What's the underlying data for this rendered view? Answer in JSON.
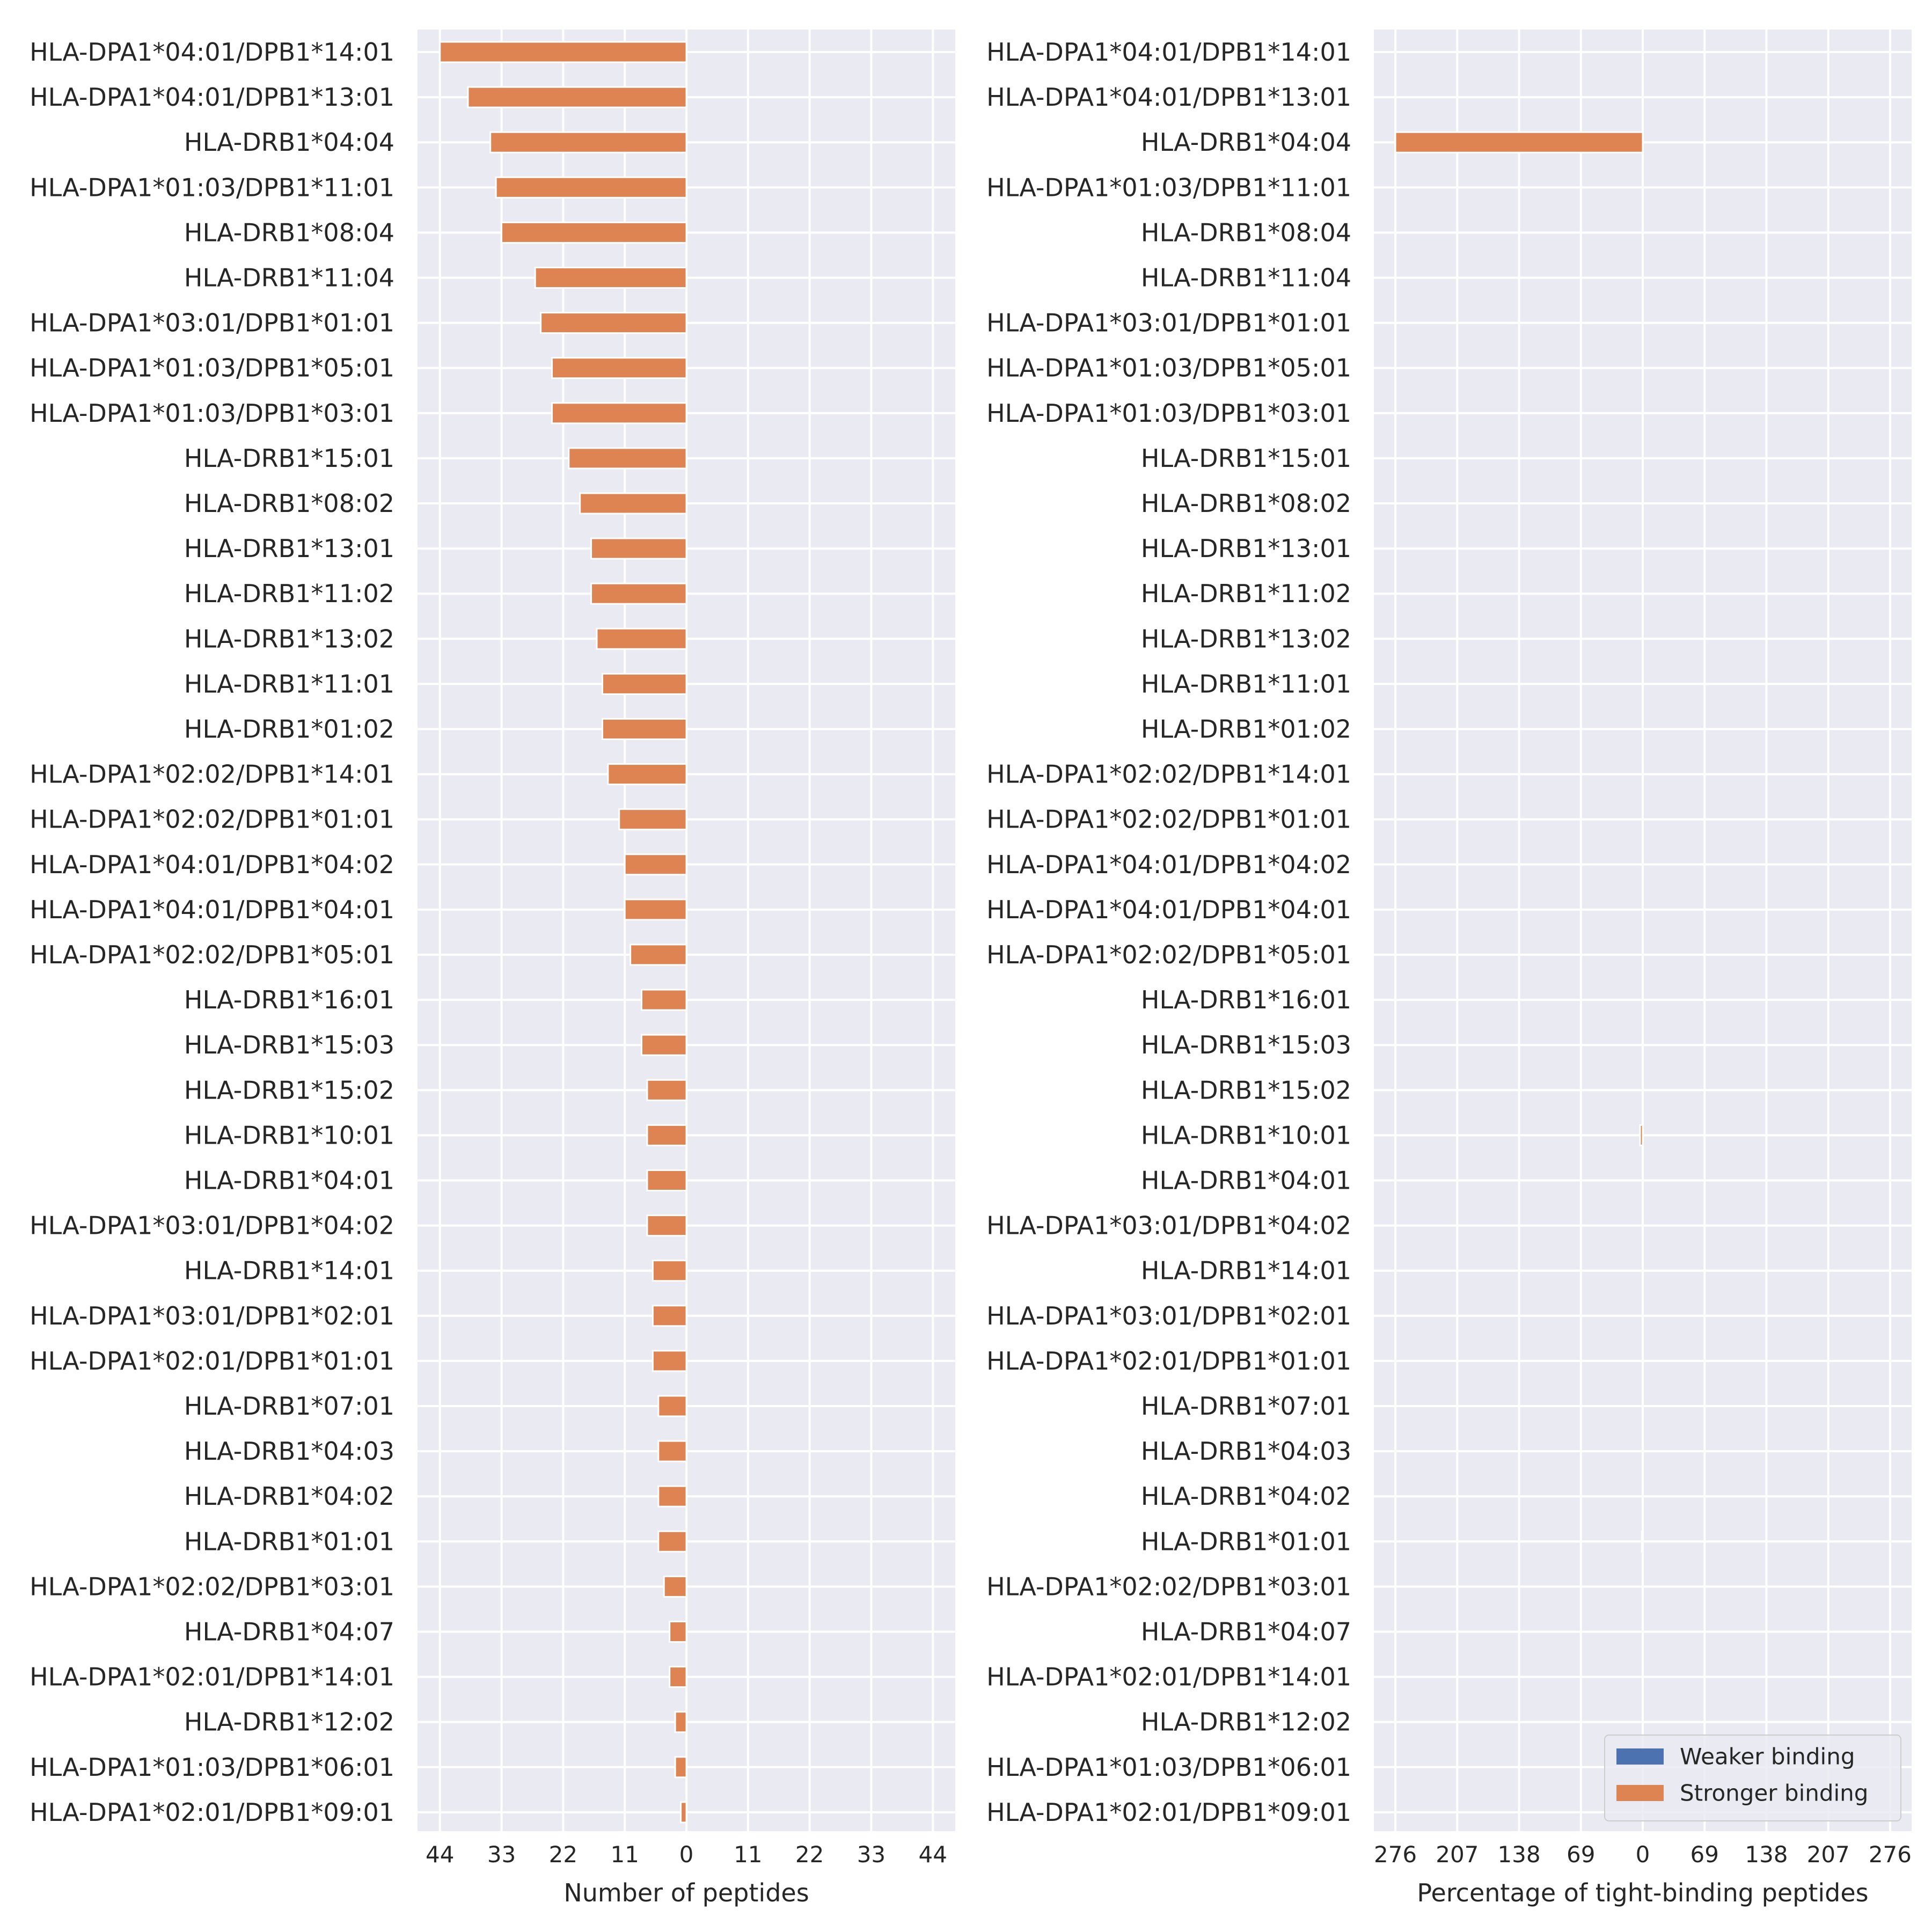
{
  "colors": {
    "background": "#EAEAF2",
    "grid": "#FFFFFF",
    "weaker": "#4C72B0",
    "stronger": "#DD8452",
    "text": "#262626"
  },
  "allele_labels": [
    "HLA-DPA1*04:01/DPB1*14:01",
    "HLA-DPA1*04:01/DPB1*13:01",
    "HLA-DRB1*04:04",
    "HLA-DPA1*01:03/DPB1*11:01",
    "HLA-DRB1*08:04",
    "HLA-DRB1*11:04",
    "HLA-DPA1*03:01/DPB1*01:01",
    "HLA-DPA1*01:03/DPB1*05:01",
    "HLA-DPA1*01:03/DPB1*03:01",
    "HLA-DRB1*15:01",
    "HLA-DRB1*08:02",
    "HLA-DRB1*13:01",
    "HLA-DRB1*11:02",
    "HLA-DRB1*13:02",
    "HLA-DRB1*11:01",
    "HLA-DRB1*01:02",
    "HLA-DPA1*02:02/DPB1*14:01",
    "HLA-DPA1*02:02/DPB1*01:01",
    "HLA-DPA1*04:01/DPB1*04:02",
    "HLA-DPA1*04:01/DPB1*04:01",
    "HLA-DPA1*02:02/DPB1*05:01",
    "HLA-DRB1*16:01",
    "HLA-DRB1*15:03",
    "HLA-DRB1*15:02",
    "HLA-DRB1*10:01",
    "HLA-DRB1*04:01",
    "HLA-DPA1*03:01/DPB1*04:02",
    "HLA-DRB1*14:01",
    "HLA-DPA1*03:01/DPB1*02:01",
    "HLA-DPA1*02:01/DPB1*01:01",
    "HLA-DRB1*07:01",
    "HLA-DRB1*04:03",
    "HLA-DRB1*04:02",
    "HLA-DRB1*01:01",
    "HLA-DPA1*02:02/DPB1*03:01",
    "HLA-DRB1*04:07",
    "HLA-DPA1*02:01/DPB1*14:01",
    "HLA-DRB1*12:02",
    "HLA-DPA1*01:03/DPB1*06:01",
    "HLA-DPA1*02:01/DPB1*09:01"
  ],
  "chart_data": [
    {
      "type": "bar",
      "orientation": "horizontal",
      "xlabel": "Number of peptides",
      "xlim": [
        -48,
        48
      ],
      "xticks": [
        -44,
        -33,
        -22,
        -11,
        0,
        11,
        22,
        33,
        44
      ],
      "xtick_labels": [
        "44",
        "33",
        "22",
        "11",
        "0",
        "11",
        "22",
        "33",
        "44"
      ],
      "grid": true,
      "series": [
        {
          "name": "Stronger binding",
          "values": [
            -44,
            -39,
            -35,
            -34,
            -33,
            -27,
            -26,
            -24,
            -24,
            -21,
            -19,
            -17,
            -17,
            -16,
            -15,
            -15,
            -14,
            -12,
            -11,
            -11,
            -10,
            -8,
            -8,
            -7,
            -7,
            -7,
            -7,
            -6,
            -6,
            -6,
            -5,
            -5,
            -5,
            -5,
            -4,
            -3,
            -3,
            -2,
            -2,
            -1
          ]
        }
      ]
    },
    {
      "type": "bar",
      "orientation": "horizontal",
      "xlabel": "Percentage of tight-binding peptides",
      "xlim": [
        -300,
        300
      ],
      "xticks": [
        -276,
        -207,
        -138,
        -69,
        0,
        69,
        138,
        207,
        276
      ],
      "xtick_labels": [
        "276",
        "207",
        "138",
        "69",
        "0",
        "69",
        "138",
        "207",
        "276"
      ],
      "grid": true,
      "legend_position": "lower-right",
      "series": [
        {
          "name": "Weaker binding",
          "values": [
            0,
            0,
            0,
            0,
            0,
            0,
            0,
            0,
            0,
            0,
            0,
            0,
            0,
            0,
            0,
            0,
            0,
            0,
            0,
            0,
            0,
            0,
            0,
            0,
            0,
            0,
            0,
            0,
            0,
            0,
            0,
            0,
            0,
            0,
            0,
            0,
            0,
            0,
            0,
            0
          ]
        },
        {
          "name": "Stronger binding",
          "values": [
            0,
            0,
            -276,
            0,
            0,
            0,
            0,
            0,
            0,
            0,
            0,
            0,
            0,
            0,
            0,
            0,
            0,
            0,
            0,
            0,
            0,
            0,
            0,
            0,
            -3,
            0,
            0,
            0,
            0,
            0,
            0,
            0,
            0,
            -1,
            0,
            0,
            0,
            0,
            0,
            0
          ]
        }
      ]
    }
  ]
}
